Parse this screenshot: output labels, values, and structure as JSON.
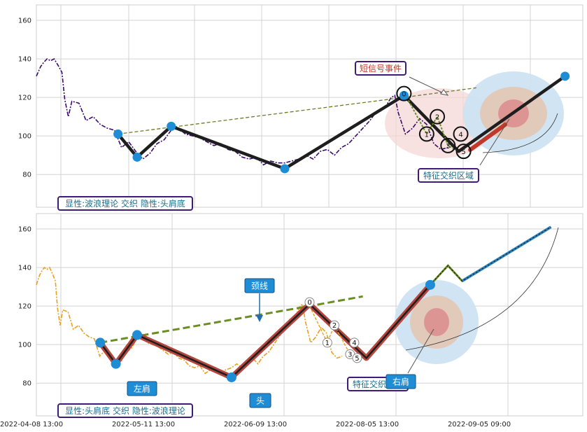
{
  "chart_data": [
    {
      "type": "line",
      "panel": "top",
      "ylim": [
        63,
        168
      ],
      "yticks": [
        80,
        100,
        120,
        140,
        160
      ],
      "grid": true,
      "price_line_color": "#3b0a6e",
      "price_series": [
        [
          0,
          131
        ],
        [
          0.6,
          136
        ],
        [
          1,
          138
        ],
        [
          1.5,
          140
        ],
        [
          2,
          139
        ],
        [
          2.5,
          140
        ],
        [
          3,
          137
        ],
        [
          3.6,
          133
        ],
        [
          4,
          119
        ],
        [
          4.5,
          110
        ],
        [
          5,
          118
        ],
        [
          6,
          117
        ],
        [
          7,
          108
        ],
        [
          8,
          110
        ],
        [
          9,
          106
        ],
        [
          10,
          104
        ],
        [
          11,
          103
        ],
        [
          12,
          94
        ],
        [
          13,
          97
        ],
        [
          14,
          92
        ],
        [
          15,
          88
        ],
        [
          16,
          91
        ],
        [
          17,
          96
        ],
        [
          18,
          98
        ],
        [
          19,
          103
        ],
        [
          20,
          104
        ],
        [
          21,
          101
        ],
        [
          22,
          100
        ],
        [
          23,
          99
        ],
        [
          24,
          97
        ],
        [
          25,
          95
        ],
        [
          26,
          96
        ],
        [
          27,
          93
        ],
        [
          28,
          92
        ],
        [
          29,
          89
        ],
        [
          30,
          88
        ],
        [
          31,
          89
        ],
        [
          32,
          85
        ],
        [
          33,
          87
        ],
        [
          34,
          86
        ],
        [
          35,
          86
        ],
        [
          36,
          87
        ],
        [
          37,
          88
        ],
        [
          38,
          90
        ],
        [
          39,
          88
        ],
        [
          40,
          92
        ],
        [
          41,
          93
        ],
        [
          42,
          90
        ],
        [
          43,
          94
        ],
        [
          44,
          96
        ],
        [
          45,
          100
        ],
        [
          46,
          104
        ],
        [
          47,
          108
        ],
        [
          48,
          113
        ],
        [
          49,
          114
        ],
        [
          50,
          120
        ],
        [
          50.5,
          121
        ],
        [
          51,
          112
        ],
        [
          52,
          101
        ],
        [
          53,
          104
        ],
        [
          54,
          109
        ],
        [
          55,
          106
        ],
        [
          56,
          96
        ],
        [
          57,
          93
        ],
        [
          58,
          94
        ]
      ],
      "wave_points": [
        [
          11.5,
          101
        ],
        [
          14.2,
          89
        ],
        [
          19.0,
          105
        ],
        [
          35.0,
          83
        ],
        [
          51.8,
          121
        ],
        [
          59.5,
          92
        ],
        [
          74.5,
          131
        ]
      ],
      "neckline": [
        [
          11.5,
          101
        ],
        [
          51.8,
          120
        ],
        [
          62,
          125
        ]
      ],
      "labeled_points": [
        {
          "label": "0",
          "x": 51.8,
          "y": 122
        },
        {
          "label": "1",
          "x": 55.0,
          "y": 101
        },
        {
          "label": "2",
          "x": 56.5,
          "y": 110
        },
        {
          "label": "3",
          "x": 58.0,
          "y": 95
        },
        {
          "label": "4",
          "x": 59.8,
          "y": 101
        },
        {
          "label": "5",
          "x": 60.2,
          "y": 92
        }
      ],
      "annotations": [
        {
          "text": "短信号事件",
          "color": "#c0392b"
        },
        {
          "text": "特征交织区域",
          "color": "#1a6e8e"
        }
      ],
      "footer_label": "显性:波浪理论 交织 隐性:头肩底"
    },
    {
      "type": "line",
      "panel": "bottom",
      "ylim": [
        63,
        168
      ],
      "yticks": [
        80,
        100,
        120,
        140,
        160
      ],
      "grid": true,
      "price_line_color": "#e8a020",
      "price_series": [
        [
          0,
          131
        ],
        [
          0.6,
          136
        ],
        [
          1,
          138
        ],
        [
          1.5,
          140
        ],
        [
          2,
          139
        ],
        [
          2.5,
          140
        ],
        [
          3,
          137
        ],
        [
          3.6,
          133
        ],
        [
          4,
          119
        ],
        [
          4.5,
          110
        ],
        [
          5,
          118
        ],
        [
          6,
          117
        ],
        [
          7,
          108
        ],
        [
          8,
          110
        ],
        [
          9,
          106
        ],
        [
          10,
          104
        ],
        [
          11,
          103
        ],
        [
          12,
          94
        ],
        [
          13,
          97
        ],
        [
          14,
          92
        ],
        [
          15,
          88
        ],
        [
          16,
          91
        ],
        [
          17,
          96
        ],
        [
          18,
          98
        ],
        [
          19,
          103
        ],
        [
          20,
          104
        ],
        [
          21,
          101
        ],
        [
          22,
          100
        ],
        [
          23,
          99
        ],
        [
          24,
          97
        ],
        [
          25,
          95
        ],
        [
          26,
          96
        ],
        [
          27,
          93
        ],
        [
          28,
          92
        ],
        [
          29,
          89
        ],
        [
          30,
          88
        ],
        [
          31,
          89
        ],
        [
          32,
          85
        ],
        [
          33,
          87
        ],
        [
          34,
          86
        ],
        [
          35,
          86
        ],
        [
          36,
          87
        ],
        [
          37,
          88
        ],
        [
          38,
          90
        ],
        [
          39,
          88
        ],
        [
          40,
          92
        ],
        [
          41,
          93
        ],
        [
          42,
          90
        ],
        [
          43,
          94
        ],
        [
          44,
          96
        ],
        [
          45,
          100
        ],
        [
          46,
          104
        ],
        [
          47,
          108
        ],
        [
          48,
          113
        ],
        [
          49,
          114
        ],
        [
          50,
          120
        ],
        [
          50.5,
          121
        ],
        [
          51,
          112
        ],
        [
          52,
          101
        ],
        [
          53,
          104
        ],
        [
          54,
          109
        ],
        [
          55,
          106
        ],
        [
          56,
          96
        ],
        [
          57,
          93
        ],
        [
          58,
          94
        ]
      ],
      "pattern_points": [
        [
          9,
          101
        ],
        [
          11.2,
          90
        ],
        [
          14.2,
          105
        ],
        [
          27.5,
          83
        ],
        [
          38.5,
          121
        ],
        [
          46.5,
          93
        ],
        [
          55.5,
          131
        ]
      ],
      "neckline": [
        [
          9,
          101
        ],
        [
          38.5,
          120
        ],
        [
          46,
          125
        ]
      ],
      "projection": [
        [
          55.5,
          131
        ],
        [
          58,
          141
        ],
        [
          60,
          133
        ],
        [
          72.5,
          161
        ]
      ],
      "labeled_points": [
        {
          "label": "0",
          "x": 38.5,
          "y": 122
        },
        {
          "label": "1",
          "x": 41.0,
          "y": 101
        },
        {
          "label": "2",
          "x": 42.0,
          "y": 110
        },
        {
          "label": "3",
          "x": 44.2,
          "y": 95
        },
        {
          "label": "4",
          "x": 44.8,
          "y": 101
        },
        {
          "label": "5",
          "x": 45.2,
          "y": 93
        }
      ],
      "annotations": [
        {
          "text": "颈线",
          "color": "#1f8dd6"
        },
        {
          "text": "左肩",
          "color": "#1f8dd6"
        },
        {
          "text": "头",
          "color": "#1f8dd6"
        },
        {
          "text": "右肩",
          "color": "#1f8dd6"
        },
        {
          "text": "特征交织区域",
          "color": "#1a6e8e"
        }
      ],
      "footer_label": "显性:头肩底 交织 隐性:波浪理论"
    }
  ],
  "x_tick_labels": [
    "2022-04-08 13:00",
    "2022-05-11 13:00",
    "2022-06-09 13:00",
    "2022-08-05 13:00",
    "2022-09-05 09:00"
  ],
  "colors": {
    "wave_line": "#1e1e1e",
    "marker": "#1f8dd6",
    "neckline_top": "#6b7c2b",
    "neckline_bottom": "#6b8e23",
    "pattern_fill": "#b5473f",
    "region_blue": "#cde3f3",
    "region_pink": "#f3d6d4",
    "label_border": "#3f1c7a"
  }
}
